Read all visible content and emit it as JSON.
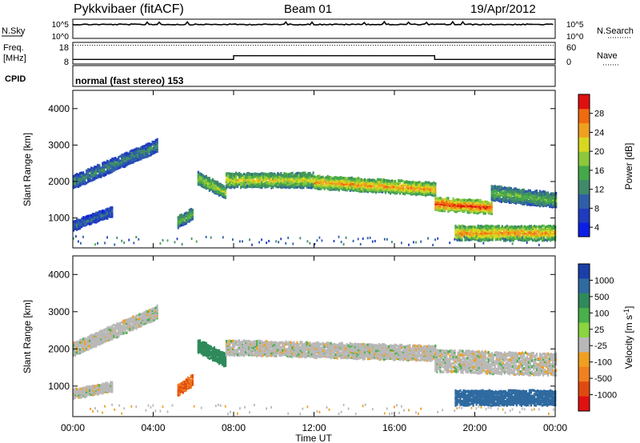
{
  "header": {
    "title": "Pykkvibaer (fitACF)",
    "beam": "Beam 01",
    "date": "19/Apr/2012"
  },
  "time_axis": {
    "label": "Time UT",
    "range_hours": [
      0,
      24
    ],
    "ticks": [
      "00:00",
      "04:00",
      "08:00",
      "12:00",
      "16:00",
      "20:00",
      "00:00"
    ]
  },
  "panels": {
    "nsky": {
      "left_label": "N.Sky",
      "left_ticks": [
        "10^5",
        "10^0"
      ],
      "right_label": "N.Search",
      "right_ticks": [
        "10^5",
        "10^0"
      ]
    },
    "freq": {
      "left_label_1": "Freq.",
      "left_label_2": "[MHz]",
      "left_ticks": [
        "18",
        "8"
      ],
      "right_label": "Nave",
      "right_ticks": [
        "60",
        "0"
      ],
      "freq_steps": [
        {
          "t0": 0,
          "t1": 8,
          "value": 10.1
        },
        {
          "t0": 8,
          "t1": 18,
          "value": 11.8
        },
        {
          "t0": 18,
          "t1": 24,
          "value": 10.1
        }
      ],
      "nave_level": 52
    },
    "cpid": {
      "label": "CPID",
      "text": "normal (fast stereo) 153"
    }
  },
  "colorbars": {
    "power": {
      "label": "Power [dB]",
      "ticks": [
        "28",
        "24",
        "20",
        "16",
        "12",
        "8",
        "4"
      ],
      "colors": [
        "#0b1ee6",
        "#1f3bbf",
        "#2f5ea8",
        "#3f8a6a",
        "#45a84a",
        "#8cc83c",
        "#d8d820",
        "#f0a020",
        "#f06a10",
        "#e01010"
      ]
    },
    "velocity": {
      "label": "Velocity [m s^-1]",
      "ticks": [
        "1000",
        "500",
        "100",
        "25",
        "-25",
        "-100",
        "-500",
        "-1000"
      ],
      "colors": [
        "#1a3fa8",
        "#2f6aa0",
        "#2f8a5a",
        "#49b04a",
        "#8cd440",
        "#b8b8b8",
        "#f0a020",
        "#f08020",
        "#e04a10",
        "#e01010"
      ]
    }
  },
  "chart_data": [
    {
      "type": "heatmap",
      "name": "power",
      "ylabel": "Slant Range [km]",
      "xlabel": "Time UT",
      "ylim": [
        180,
        4500
      ],
      "yticks": [
        1000,
        2000,
        3000,
        4000
      ],
      "backscatter_bands": [
        {
          "t0": 0.0,
          "t1": 4.2,
          "r_start": 2000,
          "r_end": 3000,
          "thickness": 350,
          "power": 10
        },
        {
          "t0": 6.2,
          "t1": 7.6,
          "r_start": 2100,
          "r_end": 1700,
          "thickness": 350,
          "power": 16
        },
        {
          "t0": 7.6,
          "t1": 12.0,
          "r_start": 2050,
          "r_end": 2050,
          "thickness": 400,
          "power": 18
        },
        {
          "t0": 12.0,
          "t1": 18.0,
          "r_start": 2000,
          "r_end": 1800,
          "thickness": 350,
          "power": 22
        },
        {
          "t0": 18.0,
          "t1": 20.8,
          "r_start": 1400,
          "r_end": 1300,
          "thickness": 350,
          "power": 26
        },
        {
          "t0": 20.8,
          "t1": 24.0,
          "r_start": 1700,
          "r_end": 1500,
          "thickness": 400,
          "power": 14
        },
        {
          "t0": 0.0,
          "t1": 2.0,
          "r_start": 800,
          "r_end": 1200,
          "thickness": 250,
          "power": 8
        },
        {
          "t0": 5.2,
          "t1": 6.0,
          "r_start": 900,
          "r_end": 1150,
          "thickness": 300,
          "power": 14
        },
        {
          "t0": 19.0,
          "t1": 24.0,
          "r_start": 600,
          "r_end": 600,
          "thickness": 400,
          "power": 22
        }
      ]
    },
    {
      "type": "heatmap",
      "name": "velocity",
      "ylabel": "Slant Range [km]",
      "xlabel": "Time UT",
      "ylim": [
        180,
        4500
      ],
      "yticks": [
        1000,
        2000,
        3000,
        4000
      ],
      "backscatter_bands": [
        {
          "t0": 0.0,
          "t1": 4.2,
          "r_start": 2000,
          "r_end": 3000,
          "thickness": 350,
          "velocity": 0
        },
        {
          "t0": 6.2,
          "t1": 7.6,
          "r_start": 2100,
          "r_end": 1700,
          "thickness": 350,
          "velocity": 100
        },
        {
          "t0": 7.6,
          "t1": 18.0,
          "r_start": 2050,
          "r_end": 1900,
          "thickness": 400,
          "velocity": 0
        },
        {
          "t0": 18.0,
          "t1": 24.0,
          "r_start": 1700,
          "r_end": 1600,
          "thickness": 600,
          "velocity": 0
        },
        {
          "t0": 0.0,
          "t1": 2.0,
          "r_start": 800,
          "r_end": 1000,
          "thickness": 250,
          "velocity": 0
        },
        {
          "t0": 5.2,
          "t1": 6.0,
          "r_start": 900,
          "r_end": 1200,
          "thickness": 300,
          "velocity": -500
        },
        {
          "t0": 19.0,
          "t1": 24.0,
          "r_start": 700,
          "r_end": 700,
          "thickness": 400,
          "velocity": 500
        }
      ]
    }
  ]
}
